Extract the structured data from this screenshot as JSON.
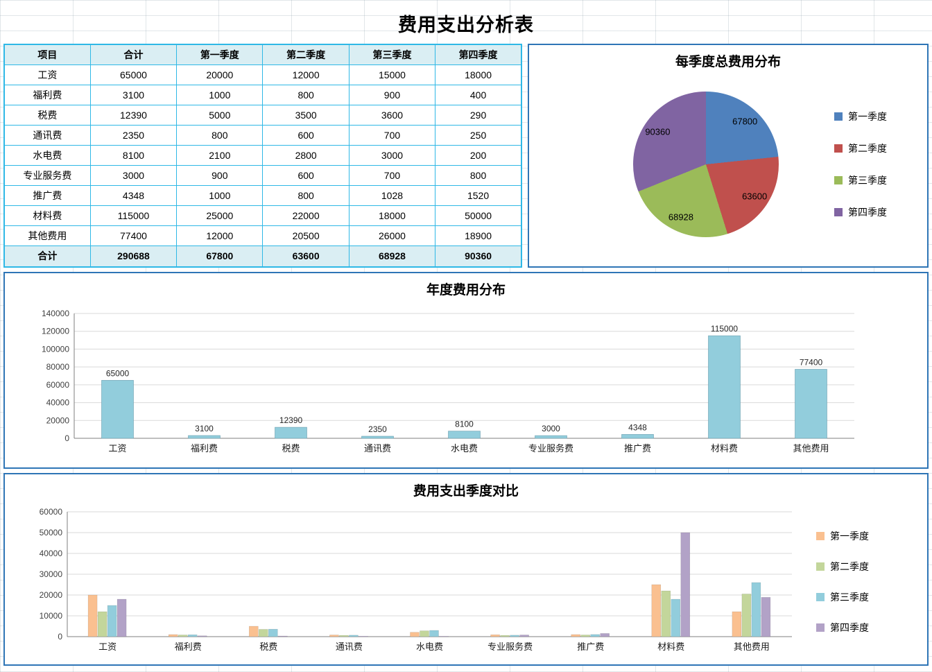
{
  "page_title": "费用支出分析表",
  "table": {
    "headers": [
      "项目",
      "合计",
      "第一季度",
      "第二季度",
      "第三季度",
      "第四季度"
    ],
    "rows": [
      [
        "工资",
        "65000",
        "20000",
        "12000",
        "15000",
        "18000"
      ],
      [
        "福利费",
        "3100",
        "1000",
        "800",
        "900",
        "400"
      ],
      [
        "税费",
        "12390",
        "5000",
        "3500",
        "3600",
        "290"
      ],
      [
        "通讯费",
        "2350",
        "800",
        "600",
        "700",
        "250"
      ],
      [
        "水电费",
        "8100",
        "2100",
        "2800",
        "3000",
        "200"
      ],
      [
        "专业服务费",
        "3000",
        "900",
        "600",
        "700",
        "800"
      ],
      [
        "推广费",
        "4348",
        "1000",
        "800",
        "1028",
        "1520"
      ],
      [
        "材料费",
        "115000",
        "25000",
        "22000",
        "18000",
        "50000"
      ],
      [
        "其他费用",
        "77400",
        "12000",
        "20500",
        "26000",
        "18900"
      ]
    ],
    "total_row": [
      "合计",
      "290688",
      "67800",
      "63600",
      "68928",
      "90360"
    ]
  },
  "chart_data": [
    {
      "type": "pie",
      "title": "每季度总费用分布",
      "labels": [
        "第一季度",
        "第二季度",
        "第三季度",
        "第四季度"
      ],
      "values": [
        67800,
        63600,
        68928,
        90360
      ],
      "colors": [
        "#4F81BD",
        "#C0504D",
        "#9BBB59",
        "#8064A2"
      ],
      "legend_position": "right"
    },
    {
      "type": "bar",
      "title": "年度费用分布",
      "categories": [
        "工资",
        "福利费",
        "税费",
        "通讯费",
        "水电费",
        "专业服务费",
        "推广费",
        "材料费",
        "其他费用"
      ],
      "values": [
        65000,
        3100,
        12390,
        2350,
        8100,
        3000,
        4348,
        115000,
        77400
      ],
      "ylim": [
        0,
        140000
      ],
      "ytick_step": 20000,
      "bar_color": "#92CDDC",
      "grid": true,
      "data_labels": true,
      "legend_position": "none"
    },
    {
      "type": "bar",
      "title": "费用支出季度对比",
      "categories": [
        "工资",
        "福利费",
        "税费",
        "通讯费",
        "水电费",
        "专业服务费",
        "推广费",
        "材料费",
        "其他费用"
      ],
      "series": [
        {
          "name": "第一季度",
          "color": "#FAC090",
          "values": [
            20000,
            1000,
            5000,
            800,
            2100,
            900,
            1000,
            25000,
            12000
          ]
        },
        {
          "name": "第二季度",
          "color": "#C3D69B",
          "values": [
            12000,
            800,
            3500,
            600,
            2800,
            600,
            800,
            22000,
            20500
          ]
        },
        {
          "name": "第三季度",
          "color": "#92CDDC",
          "values": [
            15000,
            900,
            3600,
            700,
            3000,
            700,
            1028,
            18000,
            26000
          ]
        },
        {
          "name": "第四季度",
          "color": "#B2A2C7",
          "values": [
            18000,
            400,
            290,
            250,
            200,
            800,
            1520,
            50000,
            18900
          ]
        }
      ],
      "ylim": [
        0,
        60000
      ],
      "ytick_step": 10000,
      "grid": true,
      "legend_position": "right"
    }
  ]
}
